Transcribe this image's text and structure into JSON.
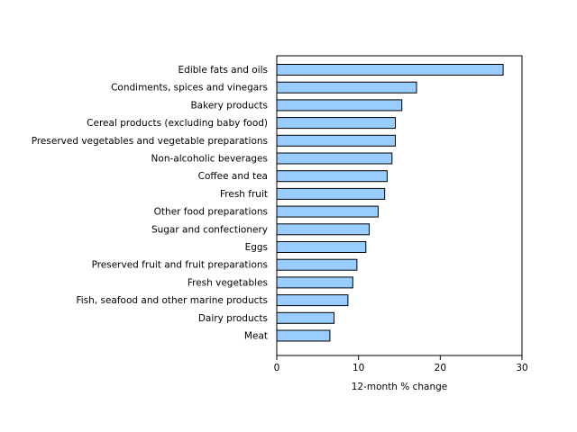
{
  "chart_data": {
    "type": "bar",
    "orientation": "horizontal",
    "xlabel": "12-month % change",
    "xlim": [
      0,
      30
    ],
    "xticks": [
      0,
      10,
      20,
      30
    ],
    "grid": false,
    "bar_color": "#99ccff",
    "bar_stroke": "#000000",
    "categories": [
      "Edible fats and oils",
      "Condiments, spices and vinegars",
      "Bakery products",
      "Cereal products (excluding baby food)",
      "Preserved vegetables and vegetable preparations",
      "Non-alcoholic beverages",
      "Coffee and tea",
      "Fresh fruit",
      "Other food preparations",
      "Sugar and confectionery",
      "Eggs",
      "Preserved fruit and fruit preparations",
      "Fresh vegetables",
      "Fish, seafood and other marine products",
      "Dairy products",
      "Meat"
    ],
    "values": [
      27.7,
      17.1,
      15.3,
      14.5,
      14.5,
      14.1,
      13.5,
      13.2,
      12.4,
      11.3,
      10.9,
      9.8,
      9.3,
      8.7,
      7.0,
      6.5
    ]
  }
}
